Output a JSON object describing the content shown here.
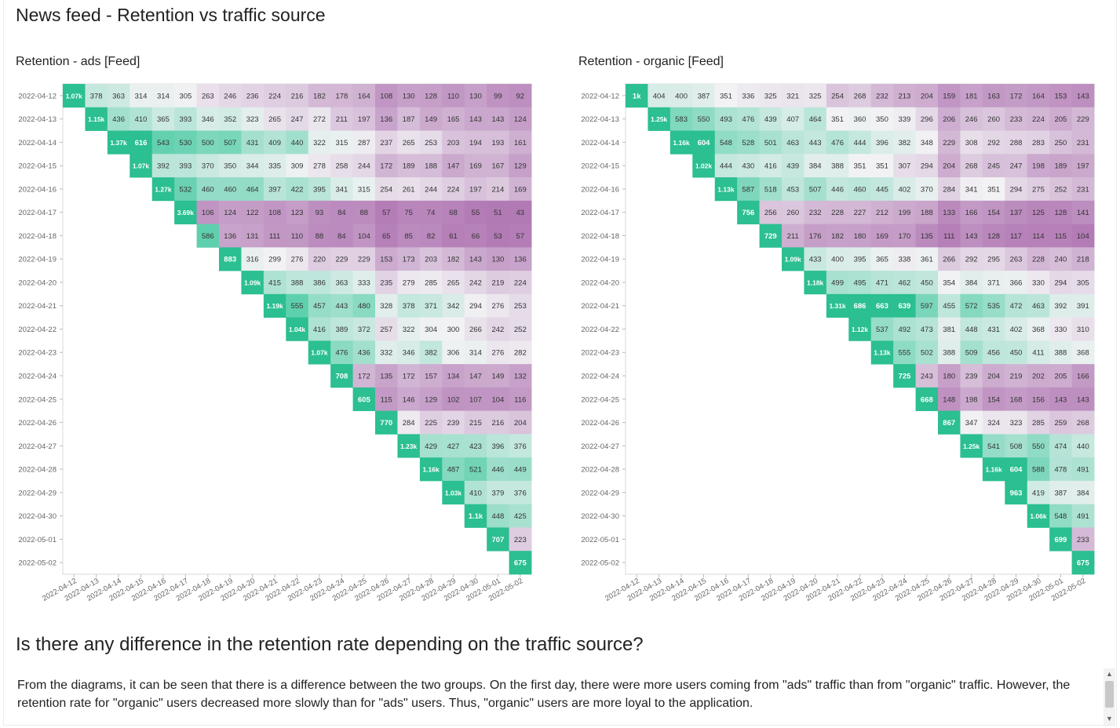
{
  "page_title": "News feed - Retention vs traffic source",
  "section_heading": "Is there any difference in the retention rate depending on the traffic source?",
  "description": "From the diagrams, it can be seen that there is a difference between the two groups. On the first day, there were more users coming from \"ads\" traffic than from \"organic\" traffic. However, the retention rate for \"organic\" users decreased more slowly than for \"ads\" users. Thus, \"organic\" users are more loyal to the application.",
  "colors": {
    "accent_green": "#2bbf91",
    "purple": "#b27ab5",
    "neutral": "#f2f2f4",
    "grid_border": "#d9d9d9",
    "tick_text": "#666666"
  },
  "icons": {
    "scroll_up": "▲",
    "scroll_down": "▼"
  },
  "chart_data": [
    {
      "type": "heatmap",
      "title": "Retention - ads [Feed]",
      "rows": [
        "2022-04-12",
        "2022-04-13",
        "2022-04-14",
        "2022-04-15",
        "2022-04-16",
        "2022-04-17",
        "2022-04-18",
        "2022-04-19",
        "2022-04-20",
        "2022-04-21",
        "2022-04-22",
        "2022-04-23",
        "2022-04-24",
        "2022-04-25",
        "2022-04-26",
        "2022-04-27",
        "2022-04-28",
        "2022-04-29",
        "2022-04-30",
        "2022-05-01",
        "2022-05-02"
      ],
      "columns": [
        "2022-04-12",
        "2022-04-13",
        "2022-04-14",
        "2022-04-15",
        "2022-04-16",
        "2022-04-17",
        "2022-04-18",
        "2022-04-19",
        "2022-04-20",
        "2022-04-21",
        "2022-04-22",
        "2022-04-23",
        "2022-04-24",
        "2022-04-25",
        "2022-04-26",
        "2022-04-27",
        "2022-04-28",
        "2022-04-29",
        "2022-04-30",
        "2022-05-01",
        "2022-05-02"
      ],
      "cells": [
        [
          "1.07k",
          "378",
          "363",
          "314",
          "314",
          "305",
          "263",
          "246",
          "236",
          "224",
          "216",
          "182",
          "178",
          "164",
          "108",
          "130",
          "128",
          "110",
          "130",
          "99",
          "92"
        ],
        [
          "1.15k",
          "436",
          "410",
          "365",
          "393",
          "346",
          "352",
          "323",
          "265",
          "247",
          "272",
          "211",
          "197",
          "136",
          "187",
          "149",
          "165",
          "143",
          "143",
          "124"
        ],
        [
          "1.37k",
          "616",
          "543",
          "530",
          "500",
          "507",
          "431",
          "409",
          "440",
          "322",
          "315",
          "287",
          "237",
          "265",
          "253",
          "203",
          "194",
          "193",
          "161"
        ],
        [
          "1.07k",
          "392",
          "393",
          "370",
          "350",
          "344",
          "335",
          "309",
          "278",
          "258",
          "244",
          "172",
          "189",
          "188",
          "147",
          "169",
          "167",
          "129"
        ],
        [
          "1.27k",
          "532",
          "460",
          "460",
          "464",
          "397",
          "422",
          "395",
          "341",
          "315",
          "254",
          "261",
          "244",
          "224",
          "197",
          "214",
          "169"
        ],
        [
          "3.69k",
          "106",
          "124",
          "122",
          "108",
          "123",
          "93",
          "84",
          "88",
          "57",
          "75",
          "74",
          "68",
          "55",
          "51",
          "43"
        ],
        [
          "586",
          "136",
          "131",
          "111",
          "110",
          "88",
          "84",
          "104",
          "65",
          "85",
          "82",
          "61",
          "66",
          "53",
          "57"
        ],
        [
          "883",
          "316",
          "299",
          "276",
          "220",
          "229",
          "229",
          "153",
          "173",
          "203",
          "182",
          "143",
          "130",
          "136"
        ],
        [
          "1.09k",
          "415",
          "388",
          "386",
          "363",
          "333",
          "235",
          "279",
          "285",
          "265",
          "242",
          "219",
          "224"
        ],
        [
          "1.19k",
          "555",
          "457",
          "443",
          "480",
          "328",
          "378",
          "371",
          "342",
          "294",
          "276",
          "253"
        ],
        [
          "1.04k",
          "416",
          "389",
          "372",
          "257",
          "322",
          "304",
          "300",
          "266",
          "242",
          "252"
        ],
        [
          "1.07k",
          "476",
          "436",
          "332",
          "346",
          "382",
          "306",
          "314",
          "276",
          "282"
        ],
        [
          "708",
          "172",
          "135",
          "172",
          "157",
          "134",
          "147",
          "149",
          "132"
        ],
        [
          "605",
          "115",
          "146",
          "129",
          "102",
          "107",
          "104",
          "116"
        ],
        [
          "770",
          "284",
          "225",
          "239",
          "215",
          "216",
          "204"
        ],
        [
          "1.23k",
          "429",
          "427",
          "423",
          "396",
          "376"
        ],
        [
          "1.16k",
          "487",
          "521",
          "446",
          "449"
        ],
        [
          "1.03k",
          "410",
          "379",
          "376"
        ],
        [
          "1.1k",
          "448",
          "425"
        ],
        [
          "707",
          "223"
        ],
        [
          "675"
        ]
      ]
    },
    {
      "type": "heatmap",
      "title": "Retention - organic [Feed]",
      "rows": [
        "2022-04-12",
        "2022-04-13",
        "2022-04-14",
        "2022-04-15",
        "2022-04-16",
        "2022-04-17",
        "2022-04-18",
        "2022-04-19",
        "2022-04-20",
        "2022-04-21",
        "2022-04-22",
        "2022-04-23",
        "2022-04-24",
        "2022-04-25",
        "2022-04-26",
        "2022-04-27",
        "2022-04-28",
        "2022-04-29",
        "2022-04-30",
        "2022-05-01",
        "2022-05-02"
      ],
      "columns": [
        "2022-04-12",
        "2022-04-13",
        "2022-04-14",
        "2022-04-15",
        "2022-04-16",
        "2022-04-17",
        "2022-04-18",
        "2022-04-19",
        "2022-04-20",
        "2022-04-21",
        "2022-04-22",
        "2022-04-23",
        "2022-04-24",
        "2022-04-25",
        "2022-04-26",
        "2022-04-27",
        "2022-04-28",
        "2022-04-29",
        "2022-04-30",
        "2022-05-01",
        "2022-05-02"
      ],
      "cells": [
        [
          "1k",
          "404",
          "400",
          "387",
          "351",
          "336",
          "325",
          "321",
          "325",
          "254",
          "268",
          "232",
          "213",
          "204",
          "159",
          "181",
          "163",
          "172",
          "164",
          "153",
          "143"
        ],
        [
          "1.25k",
          "583",
          "550",
          "493",
          "476",
          "439",
          "407",
          "464",
          "351",
          "360",
          "350",
          "339",
          "296",
          "206",
          "246",
          "260",
          "233",
          "224",
          "205",
          "229"
        ],
        [
          "1.16k",
          "604",
          "548",
          "528",
          "501",
          "463",
          "443",
          "476",
          "444",
          "396",
          "382",
          "348",
          "229",
          "308",
          "292",
          "288",
          "283",
          "250",
          "231"
        ],
        [
          "1.02k",
          "444",
          "430",
          "416",
          "439",
          "384",
          "388",
          "351",
          "351",
          "307",
          "294",
          "204",
          "268",
          "245",
          "247",
          "198",
          "189",
          "197"
        ],
        [
          "1.13k",
          "587",
          "518",
          "453",
          "507",
          "446",
          "460",
          "445",
          "402",
          "370",
          "284",
          "341",
          "351",
          "294",
          "275",
          "252",
          "231"
        ],
        [
          "756",
          "256",
          "260",
          "232",
          "228",
          "227",
          "212",
          "199",
          "188",
          "133",
          "166",
          "154",
          "137",
          "125",
          "128",
          "141"
        ],
        [
          "729",
          "211",
          "176",
          "182",
          "180",
          "169",
          "170",
          "135",
          "111",
          "143",
          "128",
          "117",
          "114",
          "115",
          "104"
        ],
        [
          "1.09k",
          "433",
          "400",
          "395",
          "365",
          "338",
          "361",
          "266",
          "292",
          "295",
          "263",
          "228",
          "240",
          "218"
        ],
        [
          "1.18k",
          "499",
          "495",
          "471",
          "462",
          "450",
          "354",
          "384",
          "371",
          "366",
          "330",
          "294",
          "305"
        ],
        [
          "1.31k",
          "686",
          "663",
          "639",
          "597",
          "455",
          "572",
          "535",
          "472",
          "463",
          "392",
          "391"
        ],
        [
          "1.12k",
          "537",
          "492",
          "473",
          "381",
          "448",
          "431",
          "402",
          "368",
          "330",
          "310"
        ],
        [
          "1.13k",
          "555",
          "502",
          "388",
          "509",
          "456",
          "450",
          "411",
          "388",
          "368"
        ],
        [
          "725",
          "243",
          "180",
          "239",
          "204",
          "219",
          "202",
          "205",
          "166"
        ],
        [
          "668",
          "148",
          "198",
          "154",
          "168",
          "156",
          "143",
          "143"
        ],
        [
          "867",
          "347",
          "324",
          "323",
          "285",
          "259",
          "268"
        ],
        [
          "1.25k",
          "541",
          "508",
          "550",
          "474",
          "440"
        ],
        [
          "1.16k",
          "604",
          "588",
          "478",
          "491"
        ],
        [
          "963",
          "419",
          "387",
          "384"
        ],
        [
          "1.06k",
          "548",
          "491"
        ],
        [
          "699",
          "233"
        ],
        [
          "675"
        ]
      ]
    }
  ]
}
